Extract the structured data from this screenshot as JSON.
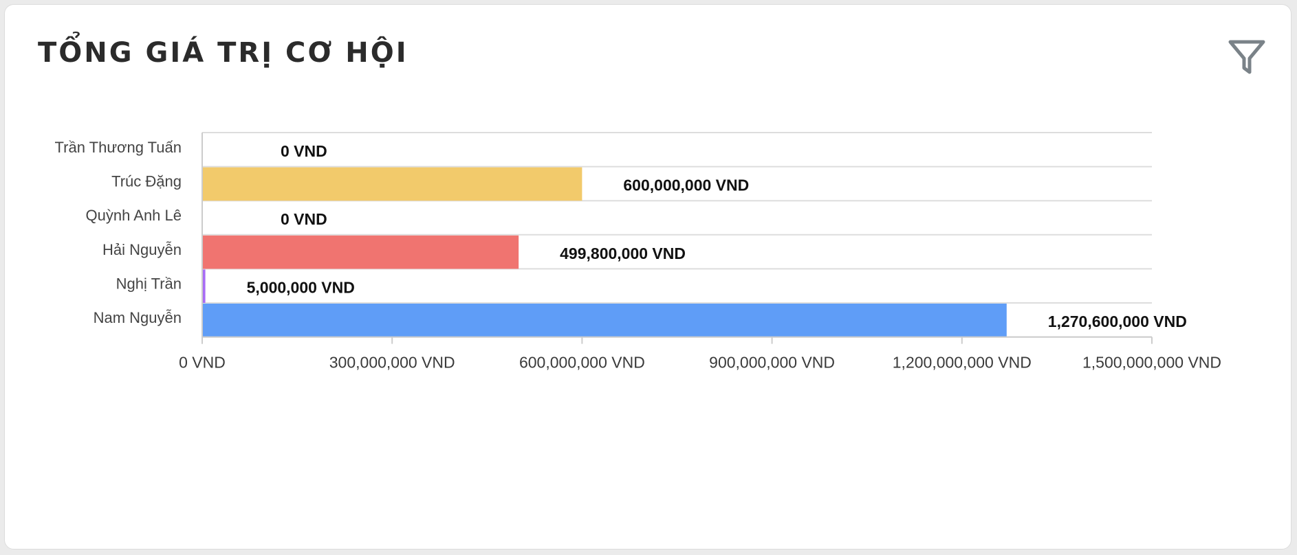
{
  "card": {
    "title": "TỔNG GIÁ TRỊ CƠ HỘI",
    "filter_icon": "filter-icon"
  },
  "chart_data": {
    "type": "bar",
    "orientation": "horizontal",
    "categories": [
      "Trần Thương Tuấn",
      "Trúc Đặng",
      "Quỳnh Anh Lê",
      "Hải Nguyễn",
      "Nghị Trần",
      "Nam Nguyễn"
    ],
    "values": [
      0,
      600000000,
      0,
      499800000,
      5000000,
      1270600000
    ],
    "value_labels": [
      "0 VND",
      "600,000,000 VND",
      "0 VND",
      "499,800,000 VND",
      "5,000,000 VND",
      "1,270,600,000 VND"
    ],
    "colors": [
      "#9b9b9b",
      "#f2ca6b",
      "#9b9b9b",
      "#f07470",
      "#a86cf5",
      "#5f9df7"
    ],
    "xlim": [
      0,
      1500000000
    ],
    "xticks": [
      0,
      300000000,
      600000000,
      900000000,
      1200000000,
      1500000000
    ],
    "xtick_labels": [
      "0 VND",
      "300,000,000 VND",
      "600,000,000 VND",
      "900,000,000 VND",
      "1,200,000,000 VND",
      "1,500,000,000 VND"
    ],
    "grid": "horizontal row separators",
    "legend": "none"
  }
}
